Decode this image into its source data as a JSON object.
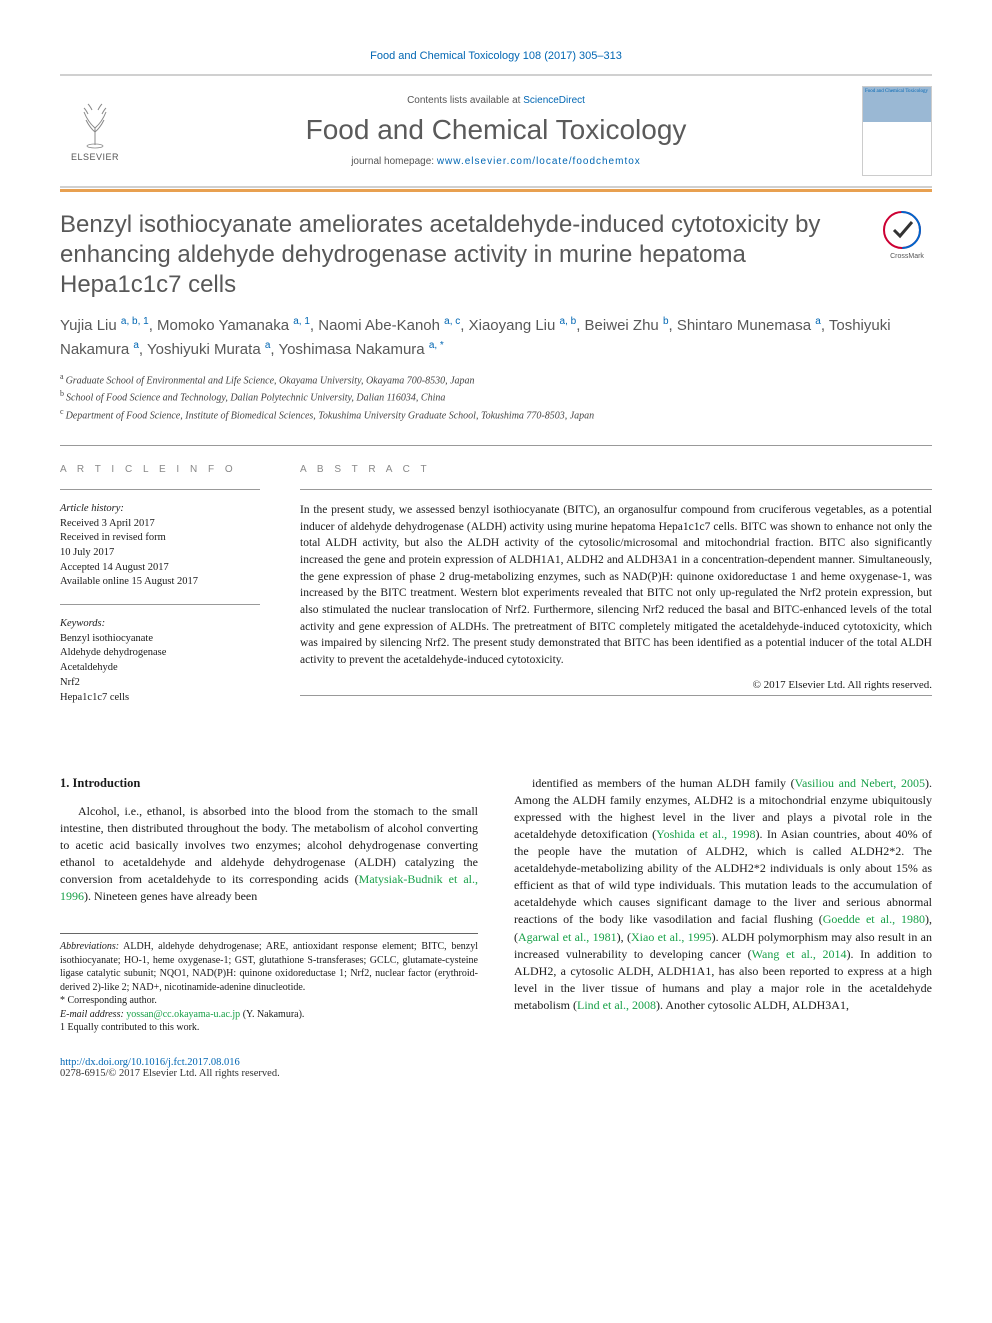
{
  "citation": "Food and Chemical Toxicology 108 (2017) 305–313",
  "header": {
    "contents_prefix": "Contents lists available at ",
    "contents_link": "ScienceDirect",
    "journal_name": "Food and Chemical Toxicology",
    "homepage_prefix": "journal homepage: ",
    "homepage_url": "www.elsevier.com/locate/foodchemtox",
    "publisher": "ELSEVIER",
    "cover_label": "Food and Chemical Toxicology"
  },
  "colors": {
    "link_blue": "#0066b3",
    "ref_green": "#18a048",
    "orange_bar": "#e8a050",
    "text_gray": "#585858",
    "rule_gray": "#999999"
  },
  "article": {
    "title": "Benzyl isothiocyanate ameliorates acetaldehyde-induced cytotoxicity by enhancing aldehyde dehydrogenase activity in murine hepatoma Hepa1c1c7 cells",
    "crossmark_label": "CrossMark",
    "authors_html": "Yujia Liu <sup>a, b, 1</sup>, Momoko Yamanaka <sup>a, 1</sup>, Naomi Abe-Kanoh <sup>a, c</sup>, Xiaoyang Liu <sup>a, b</sup>, Beiwei Zhu <sup>b</sup>, Shintaro Munemasa <sup>a</sup>, Toshiyuki Nakamura <sup>a</sup>, Yoshiyuki Murata <sup>a</sup>, Yoshimasa Nakamura <sup>a, *</sup>",
    "affiliations": [
      {
        "sup": "a",
        "text": "Graduate School of Environmental and Life Science, Okayama University, Okayama 700-8530, Japan"
      },
      {
        "sup": "b",
        "text": "School of Food Science and Technology, Dalian Polytechnic University, Dalian 116034, China"
      },
      {
        "sup": "c",
        "text": "Department of Food Science, Institute of Biomedical Sciences, Tokushima University Graduate School, Tokushima 770-8503, Japan"
      }
    ]
  },
  "info": {
    "heading": "A R T I C L E  I N F O",
    "history_label": "Article history:",
    "history": [
      "Received 3 April 2017",
      "Received in revised form",
      "10 July 2017",
      "Accepted 14 August 2017",
      "Available online 15 August 2017"
    ],
    "keywords_label": "Keywords:",
    "keywords": [
      "Benzyl isothiocyanate",
      "Aldehyde dehydrogenase",
      "Acetaldehyde",
      "Nrf2",
      "Hepa1c1c7 cells"
    ]
  },
  "abstract": {
    "heading": "A B S T R A C T",
    "text": "In the present study, we assessed benzyl isothiocyanate (BITC), an organosulfur compound from cruciferous vegetables, as a potential inducer of aldehyde dehydrogenase (ALDH) activity using murine hepatoma Hepa1c1c7 cells. BITC was shown to enhance not only the total ALDH activity, but also the ALDH activity of the cytosolic/microsomal and mitochondrial fraction. BITC also significantly increased the gene and protein expression of ALDH1A1, ALDH2 and ALDH3A1 in a concentration-dependent manner. Simultaneously, the gene expression of phase 2 drug-metabolizing enzymes, such as NAD(P)H: quinone oxidoreductase 1 and heme oxygenase-1, was increased by the BITC treatment. Western blot experiments revealed that BITC not only up-regulated the Nrf2 protein expression, but also stimulated the nuclear translocation of Nrf2. Furthermore, silencing Nrf2 reduced the basal and BITC-enhanced levels of the total activity and gene expression of ALDHs. The pretreatment of BITC completely mitigated the acetaldehyde-induced cytotoxicity, which was impaired by silencing Nrf2. The present study demonstrated that BITC has been identified as a potential inducer of the total ALDH activity to prevent the acetaldehyde-induced cytotoxicity.",
    "copyright": "© 2017 Elsevier Ltd. All rights reserved."
  },
  "body": {
    "section_heading": "1. Introduction",
    "col1_html": "Alcohol, i.e., ethanol, is absorbed into the blood from the stomach to the small intestine, then distributed throughout the body. The metabolism of alcohol converting to acetic acid basically involves two enzymes; alcohol dehydrogenase converting ethanol to acetaldehyde and aldehyde dehydrogenase (ALDH) catalyzing the conversion from acetaldehyde to its corresponding acids (<span class='lnk'>Matysiak-Budnik et al., 1996</span>). Nineteen genes have already been",
    "col2_html": "identified as members of the human ALDH family (<span class='lnk'>Vasiliou and Nebert, 2005</span>). Among the ALDH family enzymes, ALDH2 is a mitochondrial enzyme ubiquitously expressed with the highest level in the liver and plays a pivotal role in the acetaldehyde detoxification (<span class='lnk'>Yoshida et al., 1998</span>). In Asian countries, about 40% of the people have the mutation of ALDH2, which is called ALDH2*2. The acetaldehyde-metabolizing ability of the ALDH2*2 individuals is only about 15% as efficient as that of wild type individuals. This mutation leads to the accumulation of acetaldehyde which causes significant damage to the liver and serious abnormal reactions of the body like vasodilation and facial flushing (<span class='lnk'>Goedde et al., 1980</span>), (<span class='lnk'>Agarwal et al., 1981</span>), (<span class='lnk'>Xiao et al., 1995</span>). ALDH polymorphism may also result in an increased vulnerability to developing cancer (<span class='lnk'>Wang et al., 2014</span>). In addition to ALDH2, a cytosolic ALDH, ALDH1A1, has also been reported to express at a high level in the liver tissue of humans and play a major role in the acetaldehyde metabolism (<span class='lnk'>Lind et al., 2008</span>). Another cytosolic ALDH, ALDH3A1,"
  },
  "footnotes": {
    "abbrev_label": "Abbreviations:",
    "abbrev_text": " ALDH, aldehyde dehydrogenase; ARE, antioxidant response element; BITC, benzyl isothiocyanate; HO-1, heme oxygenase-1; GST, glutathione S-transferases; GCLC, glutamate-cysteine ligase catalytic subunit; NQO1, NAD(P)H: quinone oxidoreductase 1; Nrf2, nuclear factor (erythroid-derived 2)-like 2; NAD+, nicotinamide-adenine dinucleotide.",
    "corr_label": "* Corresponding author.",
    "email_label": "E-mail address:",
    "email": "yossan@cc.okayama-u.ac.jp",
    "email_name": " (Y. Nakamura).",
    "equal": "1 Equally contributed to this work."
  },
  "footer": {
    "doi": "http://dx.doi.org/10.1016/j.fct.2017.08.016",
    "issn_copy": "0278-6915/© 2017 Elsevier Ltd. All rights reserved."
  }
}
